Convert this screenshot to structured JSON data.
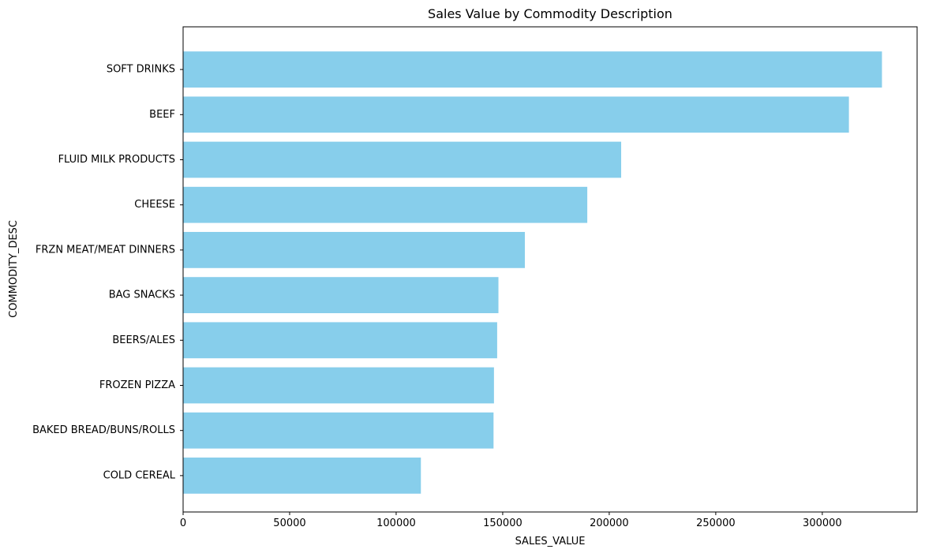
{
  "chart_data": {
    "type": "bar",
    "orientation": "horizontal",
    "title": "Sales Value by Commodity Description",
    "xlabel": "SALES_VALUE",
    "ylabel": "COMMODITY_DESC",
    "xlim": [
      0,
      344500
    ],
    "x_ticks": [
      0,
      50000,
      100000,
      150000,
      200000,
      250000,
      300000
    ],
    "grid": false,
    "bar_color": "#87ceeb",
    "categories": [
      "SOFT DRINKS",
      "BEEF",
      "FLUID MILK PRODUCTS",
      "CHEESE",
      "FRZN MEAT/MEAT DINNERS",
      "BAG SNACKS",
      "BEERS/ALES",
      "FROZEN PIZZA",
      "BAKED BREAD/BUNS/ROLLS",
      "COLD CEREAL"
    ],
    "values": [
      328000,
      312500,
      205600,
      189700,
      160400,
      148000,
      147400,
      145900,
      145700,
      111600
    ]
  }
}
